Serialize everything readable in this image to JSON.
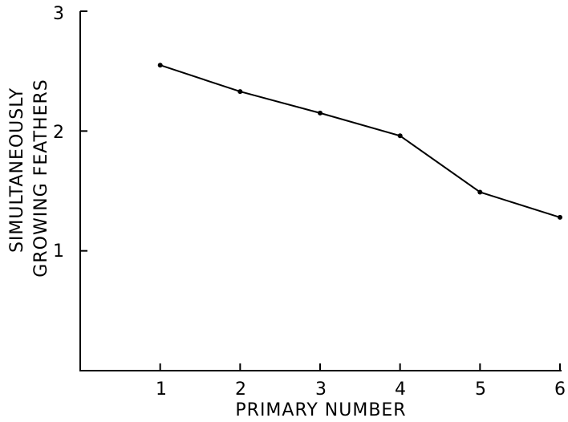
{
  "chart_data": {
    "type": "line",
    "x": [
      1,
      2,
      3,
      4,
      5,
      6
    ],
    "series": [
      {
        "values": [
          2.55,
          2.33,
          2.15,
          1.96,
          1.49,
          1.28
        ]
      }
    ],
    "xlabel": "PRIMARY NUMBER",
    "ylabel_lines": [
      "SIMULTANEOUSLY",
      "GROWING  FEATHERS"
    ],
    "xticks": [
      "1",
      "2",
      "3",
      "4",
      "5",
      "6"
    ],
    "yticks": [
      "1",
      "2",
      "3"
    ],
    "xlim": [
      0,
      6
    ],
    "ylim": [
      0,
      3
    ],
    "grid": false
  }
}
